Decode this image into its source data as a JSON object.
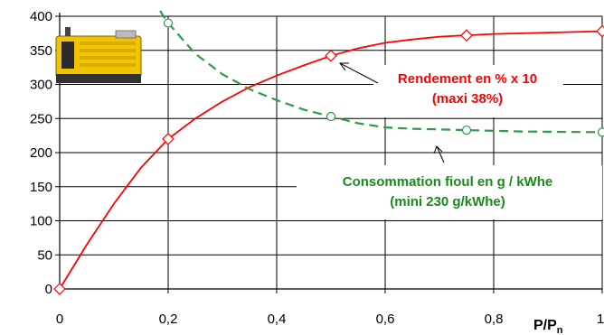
{
  "chart_data": {
    "type": "line",
    "x_ticks": [
      "0",
      "0,2",
      "0,4",
      "0,6",
      "0,8",
      "1"
    ],
    "y_ticks": [
      "0",
      "50",
      "100",
      "150",
      "200",
      "250",
      "300",
      "350",
      "400"
    ],
    "xlim": [
      0,
      1
    ],
    "ylim": [
      0,
      400
    ],
    "grid": true,
    "xlabel_main": "P/P",
    "xlabel_sub": "n",
    "series": [
      {
        "color": "#ff0000",
        "style": "solid",
        "marker": "diamond",
        "points": [
          [
            0,
            0
          ],
          [
            0.2,
            220
          ],
          [
            0.5,
            342
          ],
          [
            0.75,
            372
          ],
          [
            1.0,
            378
          ]
        ],
        "curve": [
          [
            0,
            0
          ],
          [
            0.05,
            65
          ],
          [
            0.1,
            125
          ],
          [
            0.15,
            178
          ],
          [
            0.2,
            220
          ],
          [
            0.25,
            250
          ],
          [
            0.3,
            275
          ],
          [
            0.35,
            296
          ],
          [
            0.4,
            313
          ],
          [
            0.45,
            328
          ],
          [
            0.5,
            342
          ],
          [
            0.55,
            353
          ],
          [
            0.6,
            361
          ],
          [
            0.65,
            366
          ],
          [
            0.7,
            370
          ],
          [
            0.75,
            372
          ],
          [
            0.8,
            374
          ],
          [
            0.9,
            376
          ],
          [
            1.0,
            378
          ]
        ],
        "annotation_lines": [
          "Rendement en % x 10",
          "(maxi 38%)"
        ]
      },
      {
        "color": "#2e9a4a",
        "style": "dashed",
        "marker": "circle",
        "points": [
          [
            0.2,
            390
          ],
          [
            0.5,
            253
          ],
          [
            0.75,
            233
          ],
          [
            1.0,
            230
          ]
        ],
        "curve": [
          [
            0.185,
            408
          ],
          [
            0.2,
            390
          ],
          [
            0.25,
            345
          ],
          [
            0.3,
            315
          ],
          [
            0.35,
            293
          ],
          [
            0.4,
            277
          ],
          [
            0.45,
            263
          ],
          [
            0.5,
            253
          ],
          [
            0.55,
            243
          ],
          [
            0.6,
            237
          ],
          [
            0.65,
            235
          ],
          [
            0.7,
            234
          ],
          [
            0.75,
            233
          ],
          [
            0.85,
            231
          ],
          [
            1.0,
            230
          ]
        ],
        "annotation_lines": [
          "Consommation fioul en g / kWhe",
          "(mini 230 g/kWhe)"
        ]
      }
    ]
  },
  "image": {
    "icon": "generator-icon"
  }
}
